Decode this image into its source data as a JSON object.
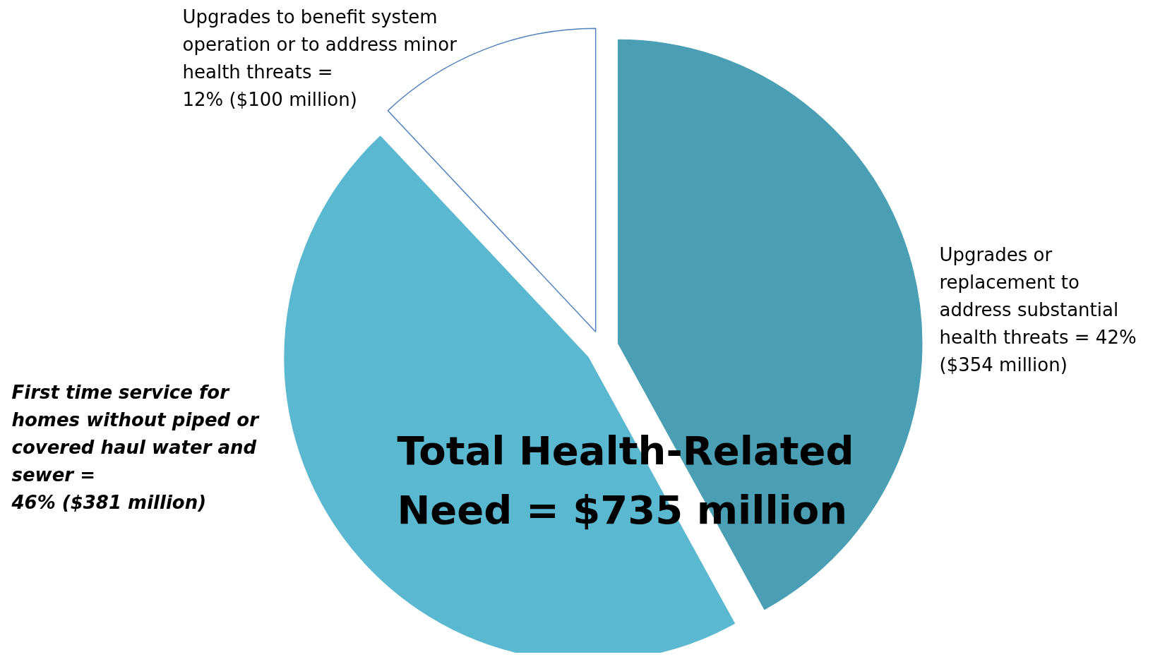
{
  "chart_data": {
    "type": "pie",
    "categories": [
      "Upgrades or\nreplacement to\naddress substantial\nhealth threats = 42%\n($354 million)",
      "First time service for\nhomes without piped or\ncovered haul water and\nsewer =\n46%  ($381 million)",
      "Upgrades to benefit system\noperation or to address minor\nhealth threats =\n12%  ($100 million)"
    ],
    "values": [
      42,
      46,
      12
    ],
    "colors": [
      "#4a9fb4",
      "#5bb8d1",
      "#ffffff"
    ],
    "annotations": [
      "Total Health-Related\nNeed = $735 million"
    ],
    "legend": false
  }
}
